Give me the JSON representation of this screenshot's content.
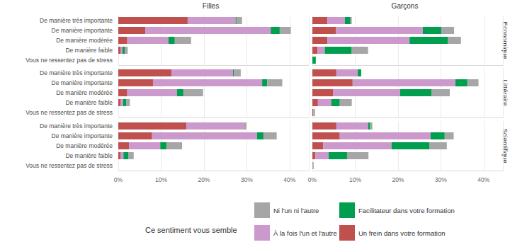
{
  "chart_data": {
    "type": "bar",
    "orientation": "horizontal",
    "stacked": true,
    "grid": true,
    "legend": "bottom",
    "legend_title": "Ce sentiment vous semble",
    "facet_columns": [
      "Filles",
      "Garçons"
    ],
    "facet_rows": [
      "Economique",
      "Littéraire",
      "Scientifique"
    ],
    "categories": [
      "De manière très importante",
      "De manière importante",
      "De manière modérée",
      "De manière faible",
      "Vous ne ressentez pas de stress"
    ],
    "xlim": [
      0,
      44.5
    ],
    "xticks": [
      {
        "value": 0,
        "label": "0%"
      },
      {
        "value": 10,
        "label": "10%"
      },
      {
        "value": 20,
        "label": "20%"
      },
      {
        "value": 30,
        "label": "30%"
      },
      {
        "value": 40,
        "label": "40%"
      }
    ],
    "panels": [
      {
        "column": "Filles",
        "row": "Economique",
        "series": [
          {
            "name": "Un frein dans votre formation",
            "color": "#c0504d",
            "values": [
              16.2,
              6.3,
              2.1,
              0.5,
              0
            ]
          },
          {
            "name": "À la fois l'un et l'autre",
            "color": "#cc99cc",
            "values": [
              11.2,
              29.3,
              9.6,
              0.5,
              0
            ]
          },
          {
            "name": "Facilitateur dans votre formation",
            "color": "#009e4f",
            "values": [
              0.2,
              2.1,
              1.5,
              0.5,
              0
            ]
          },
          {
            "name": "Ni l'un ni l'autre",
            "color": "#a6a6a6",
            "values": [
              1.3,
              2.6,
              3.8,
              0.7,
              0
            ]
          }
        ]
      },
      {
        "column": "Garçons",
        "row": "Economique",
        "series": [
          {
            "name": "Un frein dans votre formation",
            "color": "#c0504d",
            "values": [
              3.5,
              5.5,
              3.5,
              1.2,
              0
            ]
          },
          {
            "name": "À la fois l'un et l'autre",
            "color": "#cc99cc",
            "values": [
              4.1,
              20.3,
              19.2,
              1.7,
              0
            ]
          },
          {
            "name": "Facilitateur dans votre formation",
            "color": "#009e4f",
            "values": [
              1.3,
              4.3,
              8.9,
              6.3,
              0.8
            ]
          },
          {
            "name": "Ni l'un ni l'autre",
            "color": "#a6a6a6",
            "values": [
              0.3,
              3.0,
              3.1,
              3.8,
              0
            ]
          }
        ]
      },
      {
        "column": "Filles",
        "row": "Littéraire",
        "series": [
          {
            "name": "Un frein dans votre formation",
            "color": "#c0504d",
            "values": [
              12.4,
              8.1,
              2.1,
              0.5,
              0
            ]
          },
          {
            "name": "À la fois l'un et l'autre",
            "color": "#cc99cc",
            "values": [
              14.4,
              25.5,
              11.6,
              0.6,
              0
            ]
          },
          {
            "name": "Facilitateur dans votre formation",
            "color": "#009e4f",
            "values": [
              0.2,
              1.2,
              1.5,
              0.8,
              0
            ]
          },
          {
            "name": "Ni l'un ni l'autre",
            "color": "#a6a6a6",
            "values": [
              1.6,
              3.5,
              4.6,
              0.8,
              0
            ]
          }
        ]
      },
      {
        "column": "Garçons",
        "row": "Littéraire",
        "series": [
          {
            "name": "Un frein dans votre formation",
            "color": "#c0504d",
            "values": [
              5.6,
              9.4,
              4.8,
              1.3,
              0.2
            ]
          },
          {
            "name": "À la fois l'un et l'autre",
            "color": "#cc99cc",
            "values": [
              5.0,
              24.0,
              15.7,
              3.1,
              0
            ]
          },
          {
            "name": "Facilitateur dans votre formation",
            "color": "#009e4f",
            "values": [
              0.8,
              2.8,
              7.3,
              2.0,
              0
            ]
          },
          {
            "name": "Ni l'un ni l'autre",
            "color": "#a6a6a6",
            "values": [
              0,
              2.6,
              4.3,
              2.8,
              0.4
            ]
          }
        ]
      },
      {
        "column": "Filles",
        "row": "Scientifique",
        "series": [
          {
            "name": "Un frein dans votre formation",
            "color": "#c0504d",
            "values": [
              15.9,
              7.9,
              2.5,
              0.5,
              0
            ]
          },
          {
            "name": "À la fois l'un et l'autre",
            "color": "#cc99cc",
            "values": [
              13.4,
              24.5,
              7.3,
              0.7,
              0
            ]
          },
          {
            "name": "Facilitateur dans votre formation",
            "color": "#009e4f",
            "values": [
              0,
              1.5,
              1.5,
              1.2,
              0
            ]
          },
          {
            "name": "Ni l'un ni l'autre",
            "color": "#a6a6a6",
            "values": [
              0.6,
              3.1,
              3.6,
              1.2,
              0
            ]
          }
        ]
      },
      {
        "column": "Garçons",
        "row": "Scientifique",
        "series": [
          {
            "name": "Un frein dans votre formation",
            "color": "#c0504d",
            "values": [
              5.6,
              6.4,
              2.5,
              0.7,
              0
            ]
          },
          {
            "name": "À la fois l'un et l'autre",
            "color": "#cc99cc",
            "values": [
              7.4,
              21.2,
              16.0,
              3.1,
              0
            ]
          },
          {
            "name": "Facilitateur dans votre formation",
            "color": "#009e4f",
            "values": [
              0.5,
              3.3,
              8.8,
              4.3,
              0
            ]
          },
          {
            "name": "Ni l'un ni l'autre",
            "color": "#a6a6a6",
            "values": [
              0.5,
              2.1,
              4.1,
              5.0,
              0.3
            ]
          }
        ]
      }
    ]
  }
}
